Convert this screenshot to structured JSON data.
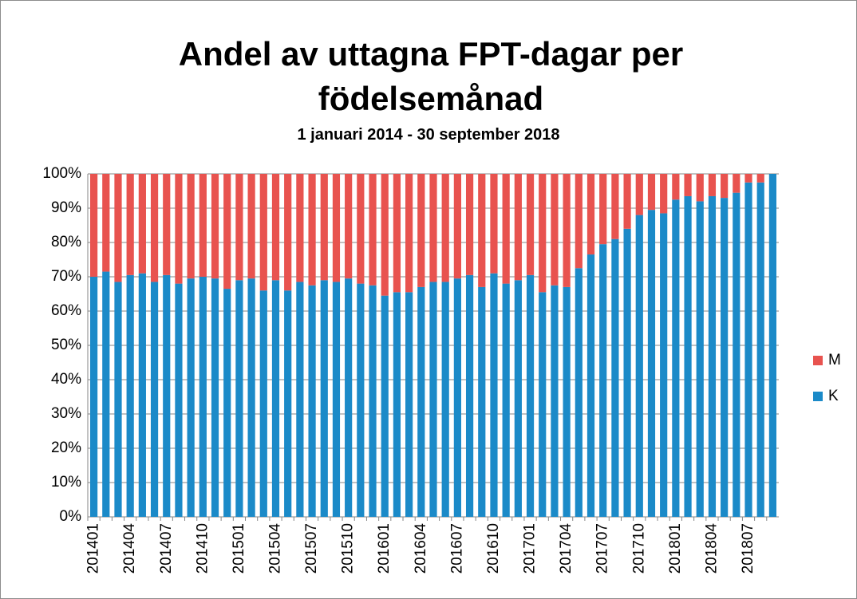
{
  "chart_data": {
    "type": "bar",
    "stacked": true,
    "title": "Andel av uttagna FPT-dagar per födelsemånad",
    "subtitle": "1 januari 2014 - 30 september 2018",
    "categories": [
      "201401",
      null,
      null,
      "201404",
      null,
      null,
      "201407",
      null,
      null,
      "201410",
      null,
      null,
      "201501",
      null,
      null,
      "201504",
      null,
      null,
      "201507",
      null,
      null,
      "201510",
      null,
      null,
      "201601",
      null,
      null,
      "201604",
      null,
      null,
      "201607",
      null,
      null,
      "201610",
      null,
      null,
      "201701",
      null,
      null,
      "201704",
      null,
      null,
      "201707",
      null,
      null,
      "201710",
      null,
      null,
      "201801",
      null,
      null,
      "201804",
      null,
      null,
      "201807",
      null,
      null
    ],
    "series": [
      {
        "name": "K",
        "color": "#1b8ac8",
        "values": [
          70,
          71.5,
          68.5,
          70.5,
          71,
          68.5,
          70.5,
          68,
          69.5,
          70,
          69.5,
          66.5,
          69,
          69.5,
          66,
          69,
          66,
          68.5,
          67.5,
          69,
          68.5,
          69.5,
          68,
          67.5,
          64.5,
          65.5,
          65.5,
          67,
          68.5,
          68.5,
          69.5,
          70.5,
          67,
          71,
          68,
          69,
          70.5,
          65.5,
          67.5,
          67,
          72.5,
          76.5,
          79.5,
          81,
          84,
          88,
          89.5,
          88.5,
          92.5,
          93.5,
          92,
          93.5,
          93,
          94.5,
          97.5,
          97.5,
          100
        ]
      },
      {
        "name": "M",
        "color": "#e8534f",
        "values": [
          30,
          28.5,
          31.5,
          29.5,
          29,
          31.5,
          29.5,
          32,
          30.5,
          30,
          30.5,
          33.5,
          31,
          30.5,
          34,
          31,
          34,
          31.5,
          32.5,
          31,
          31.5,
          30.5,
          32,
          32.5,
          35.5,
          34.5,
          34.5,
          33,
          31.5,
          31.5,
          30.5,
          29.5,
          33,
          29,
          32,
          31,
          29.5,
          34.5,
          32.5,
          33,
          27.5,
          23.5,
          20.5,
          19,
          16,
          12,
          10.5,
          11.5,
          7.5,
          6.5,
          8,
          6.5,
          7,
          5.5,
          2.5,
          2.5,
          0
        ]
      }
    ],
    "ylim": [
      0,
      100
    ],
    "yticks": [
      {
        "value": 0,
        "label": "0%"
      },
      {
        "value": 10,
        "label": "10%"
      },
      {
        "value": 20,
        "label": "20%"
      },
      {
        "value": 30,
        "label": "30%"
      },
      {
        "value": 40,
        "label": "40%"
      },
      {
        "value": 50,
        "label": "50%"
      },
      {
        "value": 60,
        "label": "60%"
      },
      {
        "value": 70,
        "label": "70%"
      },
      {
        "value": 80,
        "label": "80%"
      },
      {
        "value": 90,
        "label": "90%"
      },
      {
        "value": 100,
        "label": "100%"
      }
    ],
    "grid": true,
    "legend": "right"
  }
}
